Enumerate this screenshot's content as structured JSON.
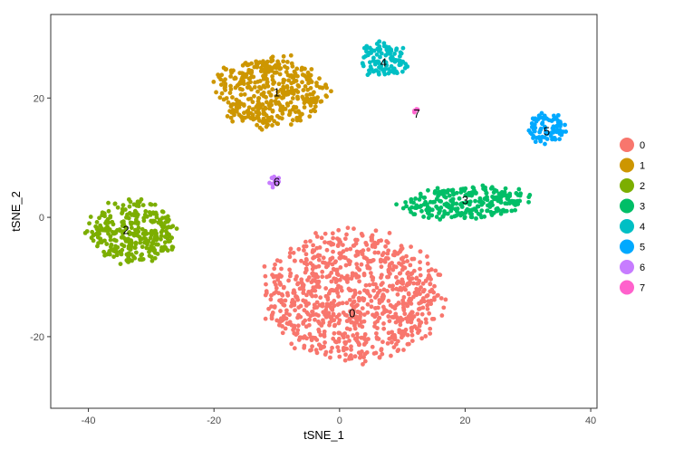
{
  "chart_data": {
    "type": "scatter",
    "xlabel": "tSNE_1",
    "ylabel": "tSNE_2",
    "xlim": [
      -46,
      41
    ],
    "ylim": [
      -32,
      34
    ],
    "x_ticks": [
      -40,
      -20,
      0,
      20,
      40
    ],
    "y_ticks": [
      -20,
      0,
      20
    ],
    "grid": false,
    "legend_position": "right",
    "series": [
      {
        "name": "0",
        "color": "#F8766D",
        "cluster": {
          "center": [
            2,
            -13
          ],
          "spread": [
            14,
            11
          ],
          "count": 900
        },
        "label_pos": [
          2,
          -16
        ]
      },
      {
        "name": "1",
        "color": "#CD9600",
        "cluster": {
          "center": [
            -11,
            21
          ],
          "spread": [
            9,
            6
          ],
          "count": 420
        },
        "label_pos": [
          -10,
          21
        ]
      },
      {
        "name": "2",
        "color": "#7CAE00",
        "cluster": {
          "center": [
            -33,
            -2.5
          ],
          "spread": [
            7,
            5.5
          ],
          "count": 320
        },
        "label_pos": [
          -34,
          -2
        ]
      },
      {
        "name": "3",
        "color": "#00BE67",
        "cluster": {
          "center": [
            20,
            2.5
          ],
          "spread": [
            10,
            2.8
          ],
          "count": 260
        },
        "label_pos": [
          20,
          3
        ]
      },
      {
        "name": "4",
        "color": "#00BFC4",
        "cluster": {
          "center": [
            7,
            26.5
          ],
          "spread": [
            4,
            3
          ],
          "count": 110
        },
        "label_pos": [
          7,
          26
        ]
      },
      {
        "name": "5",
        "color": "#00A9FF",
        "cluster": {
          "center": [
            33,
            15
          ],
          "spread": [
            3.3,
            2.6
          ],
          "count": 90
        },
        "label_pos": [
          33,
          14.5
        ]
      },
      {
        "name": "6",
        "color": "#C77CFF",
        "cluster": {
          "center": [
            -10.3,
            6
          ],
          "spread": [
            1.1,
            1.1
          ],
          "count": 14
        },
        "label_pos": [
          -10,
          6
        ]
      },
      {
        "name": "7",
        "color": "#FF61CC",
        "cluster": {
          "center": [
            12.3,
            17.8
          ],
          "spread": [
            0.5,
            0.5
          ],
          "count": 4
        },
        "label_pos": [
          12.3,
          17.5
        ]
      }
    ]
  }
}
